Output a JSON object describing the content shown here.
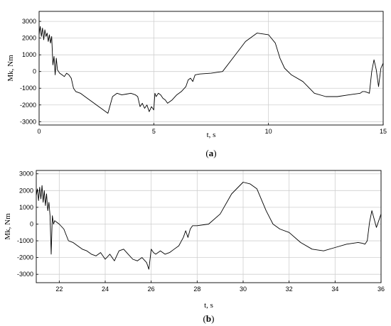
{
  "chart_data": [
    {
      "type": "line",
      "panel_label": "a",
      "xlabel": "t, s",
      "ylabel": "Mk, Nm",
      "xlim": [
        0,
        15
      ],
      "ylim": [
        -3200,
        3600
      ],
      "xticks": [
        0,
        5,
        10,
        15
      ],
      "yticks": [
        -3000,
        -2000,
        -1000,
        0,
        1000,
        2000,
        3000
      ],
      "grid": true,
      "series": [
        {
          "x": [
            0,
            0.05,
            0.1,
            0.15,
            0.2,
            0.25,
            0.3,
            0.35,
            0.4,
            0.45,
            0.5,
            0.55,
            0.6,
            0.65,
            0.7,
            0.75,
            0.8,
            0.9,
            1.0,
            1.1,
            1.2,
            1.3,
            1.4,
            1.5,
            1.6,
            1.8,
            2.0,
            2.2,
            2.4,
            2.6,
            2.8,
            3.0,
            3.2,
            3.4,
            3.6,
            3.8,
            4.0,
            4.2,
            4.3,
            4.4,
            4.5,
            4.6,
            4.7,
            4.8,
            4.9,
            5.0,
            5.05,
            5.1,
            5.2,
            5.3,
            5.4,
            5.5,
            5.6,
            5.8,
            6.0,
            6.2,
            6.4,
            6.5,
            6.6,
            6.7,
            6.8,
            7.0,
            7.5,
            8.0,
            8.5,
            9.0,
            9.5,
            10.0,
            10.3,
            10.5,
            10.7,
            11.0,
            11.5,
            12.0,
            12.5,
            13.0,
            13.5,
            14.0,
            14.1,
            14.2,
            14.3,
            14.4,
            14.5,
            14.6,
            14.7,
            14.8,
            14.9,
            15.0
          ],
          "values": [
            2200,
            2700,
            2100,
            2600,
            1900,
            2500,
            2100,
            2300,
            1800,
            2200,
            1700,
            2100,
            400,
            900,
            -200,
            800,
            100,
            -100,
            -200,
            -300,
            -100,
            -200,
            -400,
            -1000,
            -1200,
            -1300,
            -1500,
            -1700,
            -1900,
            -2100,
            -2300,
            -2500,
            -1500,
            -1300,
            -1400,
            -1350,
            -1300,
            -1400,
            -1500,
            -2100,
            -1900,
            -2200,
            -2000,
            -2400,
            -2100,
            -2300,
            -1300,
            -1500,
            -1300,
            -1400,
            -1600,
            -1700,
            -1900,
            -1700,
            -1400,
            -1200,
            -900,
            -500,
            -400,
            -600,
            -200,
            -150,
            -100,
            0,
            900,
            1800,
            2300,
            2200,
            1700,
            800,
            200,
            -200,
            -600,
            -1300,
            -1500,
            -1500,
            -1400,
            -1300,
            -1200,
            -1200,
            -1250,
            -1300,
            0,
            700,
            100,
            -900,
            200,
            500
          ]
        }
      ]
    },
    {
      "type": "line",
      "panel_label": "b",
      "xlabel": "t, s",
      "ylabel": "Mk, Nm",
      "xlim": [
        21,
        36
      ],
      "ylim": [
        -3500,
        3200
      ],
      "xticks": [
        22,
        24,
        26,
        28,
        30,
        32,
        34,
        36
      ],
      "yticks": [
        -3000,
        -2000,
        -1000,
        0,
        1000,
        2000,
        3000
      ],
      "grid": true,
      "series": [
        {
          "x": [
            21.0,
            21.05,
            21.1,
            21.15,
            21.2,
            21.25,
            21.3,
            21.35,
            21.4,
            21.45,
            21.5,
            21.55,
            21.6,
            21.65,
            21.7,
            21.75,
            21.8,
            21.9,
            22.0,
            22.2,
            22.4,
            22.6,
            22.8,
            23.0,
            23.2,
            23.4,
            23.6,
            23.8,
            24.0,
            24.2,
            24.4,
            24.6,
            24.8,
            25.0,
            25.2,
            25.4,
            25.6,
            25.8,
            25.9,
            26.0,
            26.1,
            26.2,
            26.4,
            26.6,
            26.8,
            27.0,
            27.2,
            27.4,
            27.5,
            27.6,
            27.7,
            27.8,
            28.0,
            28.5,
            29.0,
            29.5,
            30.0,
            30.3,
            30.6,
            31.0,
            31.3,
            31.6,
            32.0,
            32.5,
            33.0,
            33.5,
            34.0,
            34.5,
            35.0,
            35.2,
            35.3,
            35.4,
            35.5,
            35.6,
            35.7,
            35.8,
            35.9,
            36.0
          ],
          "values": [
            1700,
            2100,
            1400,
            2200,
            1500,
            2300,
            1300,
            2000,
            1100,
            1800,
            800,
            1300,
            500,
            -1800,
            500,
            0,
            200,
            100,
            0,
            -300,
            -1000,
            -1100,
            -1300,
            -1500,
            -1600,
            -1800,
            -1900,
            -1700,
            -2100,
            -1800,
            -2200,
            -1600,
            -1500,
            -1800,
            -2100,
            -2200,
            -2000,
            -2300,
            -2700,
            -1500,
            -1700,
            -1800,
            -1600,
            -1800,
            -1700,
            -1500,
            -1300,
            -800,
            -400,
            -800,
            -300,
            -100,
            -100,
            0,
            600,
            1800,
            2500,
            2400,
            2100,
            800,
            0,
            -300,
            -500,
            -1100,
            -1500,
            -1600,
            -1400,
            -1200,
            -1100,
            -1150,
            -1200,
            -1000,
            100,
            800,
            300,
            -200,
            200,
            600
          ]
        }
      ]
    }
  ]
}
